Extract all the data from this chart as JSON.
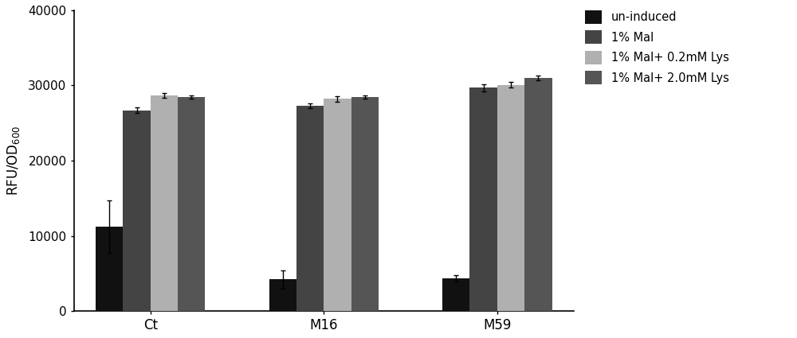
{
  "groups": [
    "Ct",
    "M16",
    "M59"
  ],
  "conditions": [
    "un-induced",
    "1% Mal",
    "1% Mal+ 0.2mM Lys",
    "1% Mal+ 2.0mM Lys"
  ],
  "colors": [
    "#111111",
    "#444444",
    "#b0b0b0",
    "#555555"
  ],
  "values": [
    [
      11200,
      26700,
      28700,
      28500
    ],
    [
      4200,
      27300,
      28200,
      28500
    ],
    [
      4350,
      29700,
      30100,
      31000
    ]
  ],
  "errors": [
    [
      3500,
      400,
      300,
      200
    ],
    [
      1200,
      300,
      400,
      200
    ],
    [
      400,
      500,
      400,
      300
    ]
  ],
  "ylabel": "RFU/OD$_{600}$",
  "ylim": [
    0,
    40000
  ],
  "yticks": [
    0,
    10000,
    20000,
    30000,
    40000
  ],
  "bar_width": 0.15,
  "figsize": [
    10.0,
    4.25
  ],
  "dpi": 100
}
